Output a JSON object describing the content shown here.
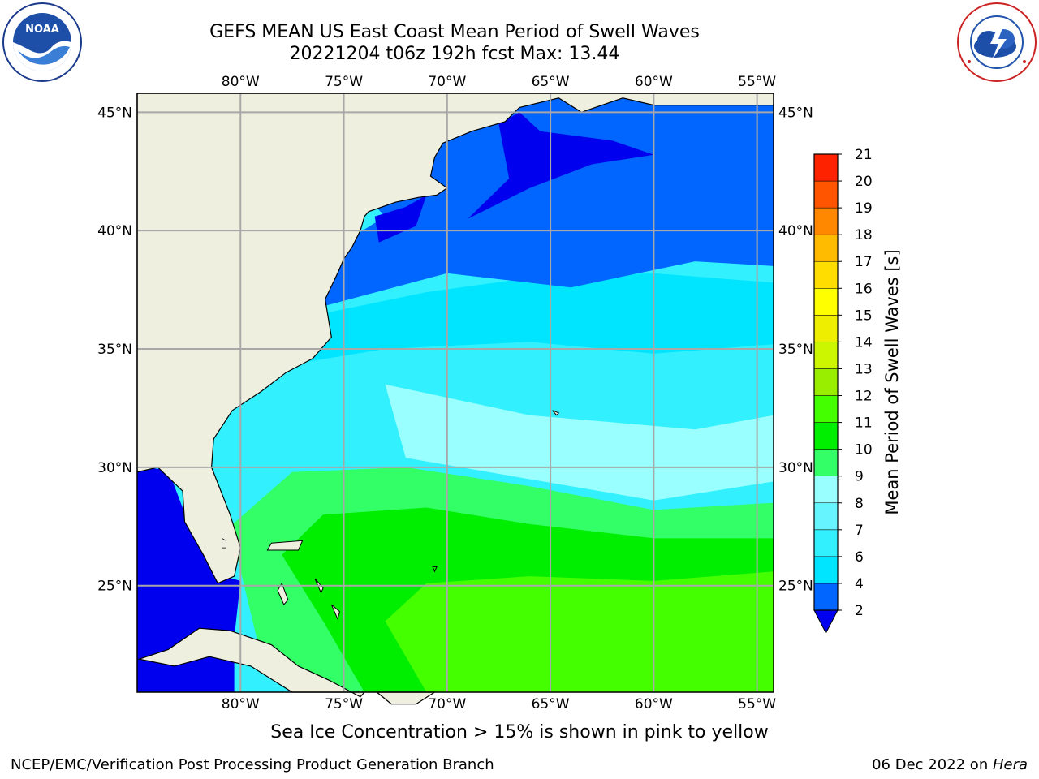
{
  "header": {
    "title_line1": "GEFS MEAN US East Coast Mean Period of Swell Waves",
    "title_line2": "20221204 t06z 192h fcst   Max: 13.44"
  },
  "logos": {
    "left": {
      "icon": "noaa-logo",
      "text": "NOAA",
      "ring_text": "NATIONAL OCEANIC AND ATMOSPHERIC ADMINISTRATION · U.S. DEPARTMENT OF COMMERCE"
    },
    "right": {
      "icon": "nws-logo",
      "ring_text": "NATIONAL WEATHER SERVICE"
    }
  },
  "map": {
    "lon_ticks": [
      "80°W",
      "75°W",
      "70°W",
      "65°W",
      "60°W",
      "55°W"
    ],
    "lat_ticks": [
      "45°N",
      "40°N",
      "35°N",
      "30°N",
      "25°N"
    ],
    "lon_values": [
      -80,
      -75,
      -70,
      -65,
      -60,
      -55
    ],
    "lat_values": [
      45,
      40,
      35,
      30,
      25
    ],
    "lon_range": [
      -85,
      -54.2
    ],
    "lat_range": [
      20.5,
      45.8
    ],
    "land_color": "#efefdf",
    "grid_color": "#a8a8a8"
  },
  "colorbar": {
    "label": "Mean Period of Swell Waves [s]",
    "levels": [
      2,
      4,
      6,
      7,
      8,
      9,
      10,
      11,
      12,
      13,
      14,
      15,
      16,
      17,
      18,
      19,
      20,
      21
    ],
    "tick_labels": [
      "2",
      "4",
      "6",
      "7",
      "8",
      "9",
      "10",
      "11",
      "12",
      "13",
      "14",
      "15",
      "16",
      "17",
      "18",
      "19",
      "20",
      "21"
    ],
    "colors": [
      "#0066ff",
      "#00e5ff",
      "#33f0ff",
      "#66f5ff",
      "#99ffff",
      "#33ff66",
      "#00ee00",
      "#44ff00",
      "#99ee00",
      "#ccf500",
      "#eeee00",
      "#ffff00",
      "#ffdd00",
      "#ffbb00",
      "#ff8800",
      "#ff5500",
      "#ff2200",
      "#ff0000"
    ],
    "extend_below_color": "#0000ee"
  },
  "caption": "Sea Ice Concentration > 15% is shown in pink to yellow",
  "footer": {
    "left": "NCEP/EMC/Verification Post Processing Product Generation Branch",
    "right_prefix": "06 Dec 2022 on ",
    "right_host": "Hera"
  }
}
